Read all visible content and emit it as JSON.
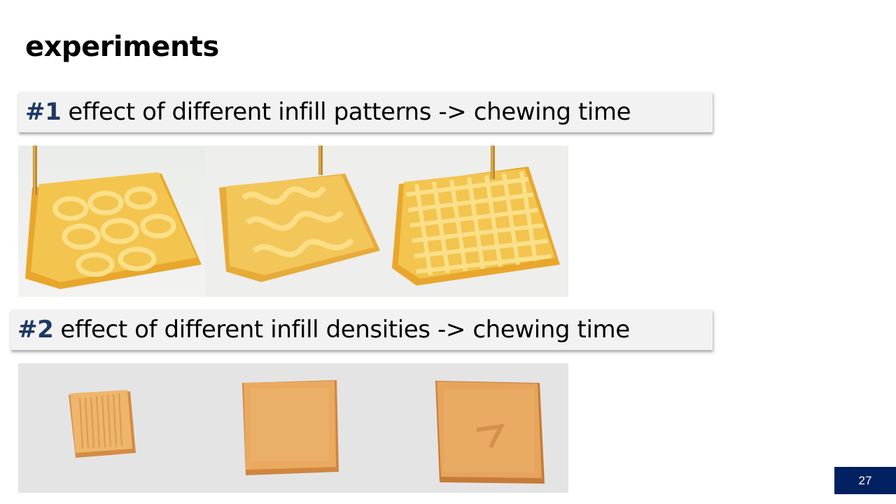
{
  "slide": {
    "title": "experiments",
    "page_number": "27"
  },
  "experiment1": {
    "number": "#1",
    "text": "effect of different infill patterns -> chewing time"
  },
  "experiment2": {
    "number": "#2",
    "text": "effect of different infill densities -> chewing time"
  },
  "colors": {
    "heading_number": "#1f3864",
    "badge_bg": "#002060",
    "heading_bg": "#f2f2f2",
    "print_yellow": "#f2c24a",
    "print_orange": "#e0a45c"
  }
}
